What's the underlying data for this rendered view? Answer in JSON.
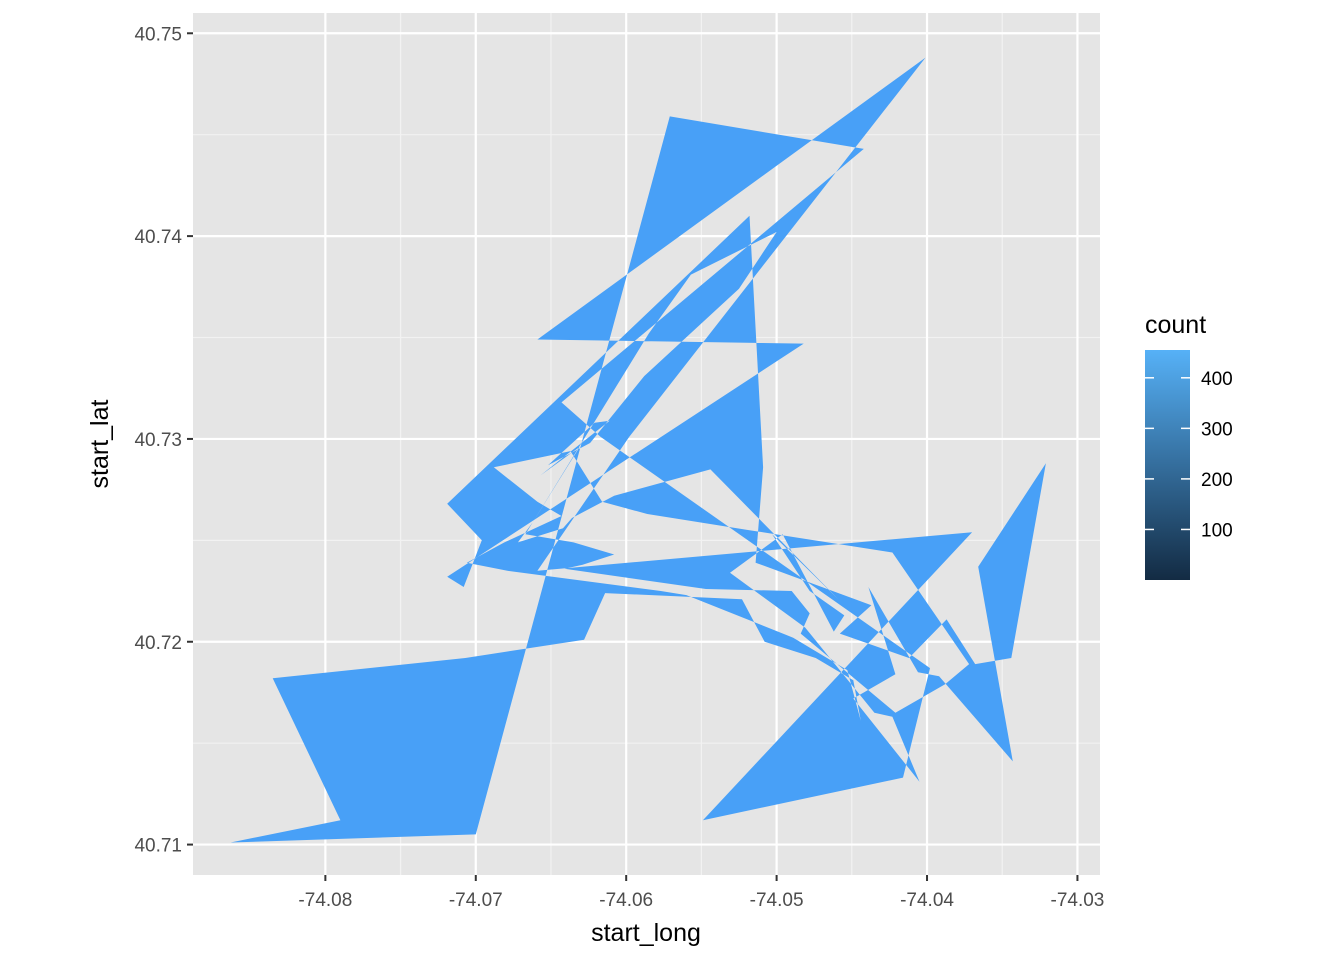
{
  "chart_data": {
    "type": "polygon",
    "title": "",
    "xlabel": "start_long",
    "ylabel": "start_lat",
    "xlim": [
      -74.0888,
      -74.0285
    ],
    "ylim": [
      40.7085,
      40.751
    ],
    "x_ticks": [
      -74.08,
      -74.07,
      -74.06,
      -74.05,
      -74.04,
      -74.03
    ],
    "x_tick_labels": [
      "-74.08",
      "-74.07",
      "-74.06",
      "-74.05",
      "-74.04",
      "-74.03"
    ],
    "y_ticks": [
      40.71,
      40.72,
      40.73,
      40.74,
      40.75
    ],
    "y_tick_labels": [
      "40.71",
      "40.72",
      "40.73",
      "40.74",
      "40.75"
    ],
    "grid": true,
    "background": "#e5e5e5",
    "fill_color": "#48a0f7",
    "series": [
      {
        "values": [
          [
            -74.0863,
            40.7101
          ],
          [
            -74.07,
            40.7105
          ],
          [
            -74.0571,
            40.7459
          ],
          [
            -74.0442,
            40.7443
          ],
          [
            -74.0643,
            40.7318
          ],
          [
            -74.0617,
            40.7301
          ],
          [
            -74.0398,
            40.7187
          ],
          [
            -74.0416,
            40.7133
          ],
          [
            -74.0549,
            40.7112
          ],
          [
            -74.037,
            40.7254
          ],
          [
            -74.0659,
            40.7235
          ],
          [
            -74.0598,
            40.7301
          ],
          [
            -74.0401,
            40.7488
          ],
          [
            -74.0659,
            40.7349
          ],
          [
            -74.0482,
            40.7347
          ],
          [
            -74.0719,
            40.7232
          ],
          [
            -74.0708,
            40.7227
          ],
          [
            -74.0696,
            40.725
          ],
          [
            -74.0719,
            40.7268
          ],
          [
            -74.0518,
            40.741
          ],
          [
            -74.0509,
            40.7286
          ],
          [
            -74.0514,
            40.7239
          ],
          [
            -74.0437,
            40.7218
          ],
          [
            -74.0458,
            40.7204
          ],
          [
            -74.0412,
            40.7192
          ],
          [
            -74.0387,
            40.7211
          ],
          [
            -74.0368,
            40.7189
          ],
          [
            -74.0344,
            40.7192
          ],
          [
            -74.0321,
            40.7288
          ],
          [
            -74.0366,
            40.7237
          ],
          [
            -74.0343,
            40.7141
          ],
          [
            -74.0392,
            40.7183
          ],
          [
            -74.0406,
            40.7185
          ],
          [
            -74.0439,
            40.7227
          ],
          [
            -74.0421,
            40.7184
          ],
          [
            -74.0449,
            40.7172
          ],
          [
            -74.0405,
            40.7131
          ],
          [
            -74.0423,
            40.7163
          ],
          [
            -74.0435,
            40.7165
          ],
          [
            -74.0481,
            40.7207
          ],
          [
            -74.0531,
            40.7234
          ],
          [
            -74.0496,
            40.7253
          ],
          [
            -74.0462,
            40.7205
          ],
          [
            -74.0455,
            40.7213
          ],
          [
            -74.0478,
            40.7225
          ],
          [
            -74.0503,
            40.7253
          ],
          [
            -74.0459,
            40.7221
          ],
          [
            -74.0544,
            40.7285
          ],
          [
            -74.0608,
            40.7272
          ],
          [
            -74.0636,
            40.7261
          ],
          [
            -74.0642,
            40.7256
          ],
          [
            -74.0672,
            40.7249
          ],
          [
            -74.0662,
            40.7259
          ],
          [
            -74.0631,
            40.7296
          ],
          [
            -74.0657,
            40.7282
          ],
          [
            -74.0611,
            40.7309
          ],
          [
            -74.0621,
            40.7308
          ],
          [
            -74.0652,
            40.7287
          ],
          [
            -74.0624,
            40.7298
          ],
          [
            -74.0588,
            40.7331
          ],
          [
            -74.0525,
            40.7374
          ],
          [
            -74.05,
            40.7402
          ],
          [
            -74.0557,
            40.7381
          ],
          [
            -74.0585,
            40.7352
          ],
          [
            -74.0667,
            40.7253
          ],
          [
            -74.0635,
            40.7249
          ],
          [
            -74.0608,
            40.7243
          ],
          [
            -74.0629,
            40.7238
          ],
          [
            -74.0641,
            40.7236
          ],
          [
            -74.0547,
            40.7226
          ],
          [
            -74.049,
            40.7225
          ],
          [
            -74.0478,
            40.7214
          ],
          [
            -74.0484,
            40.7204
          ],
          [
            -74.0421,
            40.7165
          ],
          [
            -74.0388,
            40.7179
          ],
          [
            -74.0372,
            40.7189
          ],
          [
            -74.0423,
            40.7244
          ],
          [
            -74.0518,
            40.7255
          ],
          [
            -74.0586,
            40.7263
          ],
          [
            -74.0616,
            40.7269
          ],
          [
            -74.0637,
            40.7294
          ],
          [
            -74.0688,
            40.7286
          ],
          [
            -74.0659,
            40.7269
          ],
          [
            -74.0643,
            40.7262
          ],
          [
            -74.0681,
            40.7249
          ],
          [
            -74.0706,
            40.7239
          ],
          [
            -74.0679,
            40.7235
          ],
          [
            -74.0577,
            40.7225
          ],
          [
            -74.056,
            40.7223
          ],
          [
            -74.0489,
            40.7202
          ],
          [
            -74.0453,
            40.7186
          ],
          [
            -74.0444,
            40.7161
          ],
          [
            -74.0449,
            40.7181
          ],
          [
            -74.0474,
            40.7192
          ],
          [
            -74.0508,
            40.72
          ],
          [
            -74.0523,
            40.7221
          ],
          [
            -74.0614,
            40.7224
          ],
          [
            -74.0628,
            40.7201
          ],
          [
            -74.0707,
            40.7192
          ],
          [
            -74.0835,
            40.7182
          ],
          [
            -74.079,
            40.7112
          ]
        ]
      }
    ],
    "legend": {
      "title": "count",
      "placement": "right",
      "gradient": [
        "#132b43",
        "#56b1f7"
      ],
      "range": [
        0,
        455
      ],
      "breaks": [
        100,
        200,
        300,
        400
      ],
      "labels": [
        "100",
        "200",
        "300",
        "400"
      ]
    }
  }
}
